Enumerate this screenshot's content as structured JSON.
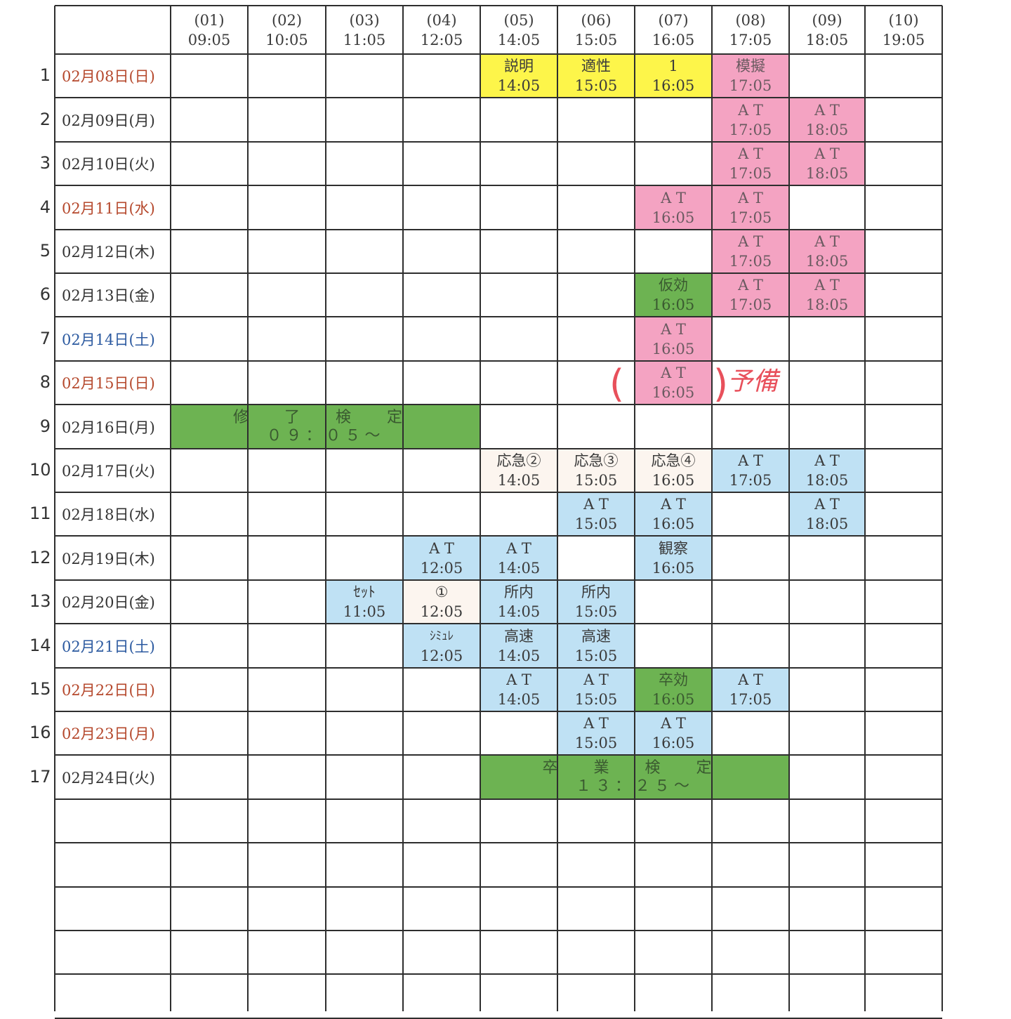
{
  "colors": {
    "yellow": "#fdf54a",
    "pink": "#f4a3c2",
    "green": "#6db352",
    "blue": "#bfe1f4",
    "peach": "#fcf5ef",
    "holiday_text": "#b5482c",
    "saturday_text": "#2c5aa0",
    "weekday_text": "#333333",
    "handwriting": "#e8505b"
  },
  "header": [
    {
      "num": "(01)",
      "time": "09:05"
    },
    {
      "num": "(02)",
      "time": "10:05"
    },
    {
      "num": "(03)",
      "time": "11:05"
    },
    {
      "num": "(04)",
      "time": "12:05"
    },
    {
      "num": "(05)",
      "time": "14:05"
    },
    {
      "num": "(06)",
      "time": "15:05"
    },
    {
      "num": "(07)",
      "time": "16:05"
    },
    {
      "num": "(08)",
      "time": "17:05"
    },
    {
      "num": "(09)",
      "time": "18:05"
    },
    {
      "num": "(10)",
      "time": "19:05"
    }
  ],
  "rows": [
    {
      "num": "1",
      "date": "02月08日(日)",
      "day": "holiday",
      "cells": [
        null,
        null,
        null,
        null,
        {
          "label": "説明",
          "time": "14:05",
          "color": "yellow"
        },
        {
          "label": "適性",
          "time": "15:05",
          "color": "yellow"
        },
        {
          "label": "1",
          "time": "16:05",
          "color": "yellow"
        },
        {
          "label": "模擬",
          "time": "17:05",
          "color": "pink"
        },
        null,
        null
      ]
    },
    {
      "num": "2",
      "date": "02月09日(月)",
      "day": "weekday",
      "cells": [
        null,
        null,
        null,
        null,
        null,
        null,
        null,
        {
          "label": "A T",
          "time": "17:05",
          "color": "pink"
        },
        {
          "label": "A T",
          "time": "18:05",
          "color": "pink"
        },
        null
      ]
    },
    {
      "num": "3",
      "date": "02月10日(火)",
      "day": "weekday",
      "cells": [
        null,
        null,
        null,
        null,
        null,
        null,
        null,
        {
          "label": "A T",
          "time": "17:05",
          "color": "pink"
        },
        {
          "label": "A T",
          "time": "18:05",
          "color": "pink"
        },
        null
      ]
    },
    {
      "num": "4",
      "date": "02月11日(水)",
      "day": "holiday",
      "cells": [
        null,
        null,
        null,
        null,
        null,
        null,
        {
          "label": "A T",
          "time": "16:05",
          "color": "pink"
        },
        {
          "label": "A T",
          "time": "17:05",
          "color": "pink"
        },
        null,
        null
      ]
    },
    {
      "num": "5",
      "date": "02月12日(木)",
      "day": "weekday",
      "cells": [
        null,
        null,
        null,
        null,
        null,
        null,
        null,
        {
          "label": "A T",
          "time": "17:05",
          "color": "pink"
        },
        {
          "label": "A T",
          "time": "18:05",
          "color": "pink"
        },
        null
      ]
    },
    {
      "num": "6",
      "date": "02月13日(金)",
      "day": "weekday",
      "cells": [
        null,
        null,
        null,
        null,
        null,
        null,
        {
          "label": "仮効",
          "time": "16:05",
          "color": "green"
        },
        {
          "label": "A T",
          "time": "17:05",
          "color": "pink"
        },
        {
          "label": "A T",
          "time": "18:05",
          "color": "pink"
        },
        null
      ]
    },
    {
      "num": "7",
      "date": "02月14日(土)",
      "day": "saturday",
      "cells": [
        null,
        null,
        null,
        null,
        null,
        null,
        {
          "label": "A T",
          "time": "16:05",
          "color": "pink"
        },
        null,
        null,
        null
      ]
    },
    {
      "num": "8",
      "date": "02月15日(日)",
      "day": "holiday",
      "cells": [
        null,
        null,
        null,
        null,
        null,
        null,
        {
          "label": "A T",
          "time": "16:05",
          "color": "pink"
        },
        null,
        null,
        null
      ]
    },
    {
      "num": "9",
      "date": "02月16日(月)",
      "day": "weekday",
      "cells": [
        null,
        null,
        null,
        null,
        null,
        null,
        null,
        null,
        null,
        null
      ]
    },
    {
      "num": "10",
      "date": "02月17日(火)",
      "day": "weekday",
      "cells": [
        null,
        null,
        null,
        null,
        {
          "label": "応急②",
          "time": "14:05",
          "color": "peach"
        },
        {
          "label": "応急③",
          "time": "15:05",
          "color": "peach"
        },
        {
          "label": "応急④",
          "time": "16:05",
          "color": "peach"
        },
        {
          "label": "A T",
          "time": "17:05",
          "color": "blue"
        },
        {
          "label": "A T",
          "time": "18:05",
          "color": "blue"
        },
        null
      ]
    },
    {
      "num": "11",
      "date": "02月18日(水)",
      "day": "weekday",
      "cells": [
        null,
        null,
        null,
        null,
        null,
        {
          "label": "A T",
          "time": "15:05",
          "color": "blue"
        },
        {
          "label": "A T",
          "time": "16:05",
          "color": "blue"
        },
        null,
        {
          "label": "A T",
          "time": "18:05",
          "color": "blue"
        },
        null
      ]
    },
    {
      "num": "12",
      "date": "02月19日(木)",
      "day": "weekday",
      "cells": [
        null,
        null,
        null,
        {
          "label": "A T",
          "time": "12:05",
          "color": "blue"
        },
        {
          "label": "A T",
          "time": "14:05",
          "color": "blue"
        },
        null,
        {
          "label": "観察",
          "time": "16:05",
          "color": "blue"
        },
        null,
        null,
        null
      ]
    },
    {
      "num": "13",
      "date": "02月20日(金)",
      "day": "weekday",
      "cells": [
        null,
        null,
        {
          "label": "ｾｯﾄ",
          "time": "11:05",
          "color": "blue"
        },
        {
          "label": "①",
          "time": "12:05",
          "color": "peach"
        },
        {
          "label": "所内",
          "time": "14:05",
          "color": "blue"
        },
        {
          "label": "所内",
          "time": "15:05",
          "color": "blue"
        },
        null,
        null,
        null,
        null
      ]
    },
    {
      "num": "14",
      "date": "02月21日(土)",
      "day": "saturday",
      "cells": [
        null,
        null,
        null,
        {
          "label": "ｼﾐｭﾚ",
          "time": "12:05",
          "color": "blue"
        },
        {
          "label": "高速",
          "time": "14:05",
          "color": "blue"
        },
        {
          "label": "高速",
          "time": "15:05",
          "color": "blue"
        },
        null,
        null,
        null,
        null
      ]
    },
    {
      "num": "15",
      "date": "02月22日(日)",
      "day": "holiday",
      "cells": [
        null,
        null,
        null,
        null,
        {
          "label": "A T",
          "time": "14:05",
          "color": "blue"
        },
        {
          "label": "A T",
          "time": "15:05",
          "color": "blue"
        },
        {
          "label": "卒効",
          "time": "16:05",
          "color": "green"
        },
        {
          "label": "A T",
          "time": "17:05",
          "color": "blue"
        },
        null,
        null
      ]
    },
    {
      "num": "16",
      "date": "02月23日(月)",
      "day": "holiday",
      "cells": [
        null,
        null,
        null,
        null,
        null,
        {
          "label": "A T",
          "time": "15:05",
          "color": "blue"
        },
        {
          "label": "A T",
          "time": "16:05",
          "color": "blue"
        },
        null,
        null,
        null
      ]
    },
    {
      "num": "17",
      "date": "02月24日(火)",
      "day": "weekday",
      "cells": [
        null,
        null,
        null,
        null,
        null,
        null,
        null,
        null,
        null,
        null
      ]
    }
  ],
  "merged": [
    {
      "row": 9,
      "from_col": 1,
      "to_col": 4,
      "label": "修 了 検 定",
      "time": "０９：０５～",
      "color": "green"
    },
    {
      "row": 17,
      "from_col": 5,
      "to_col": 8,
      "label": "卒 業 検 定",
      "time": "１３：２５～",
      "color": "green"
    }
  ],
  "handwritten_note": {
    "row": 8,
    "open": "(",
    "close": ")",
    "text": "予備"
  }
}
